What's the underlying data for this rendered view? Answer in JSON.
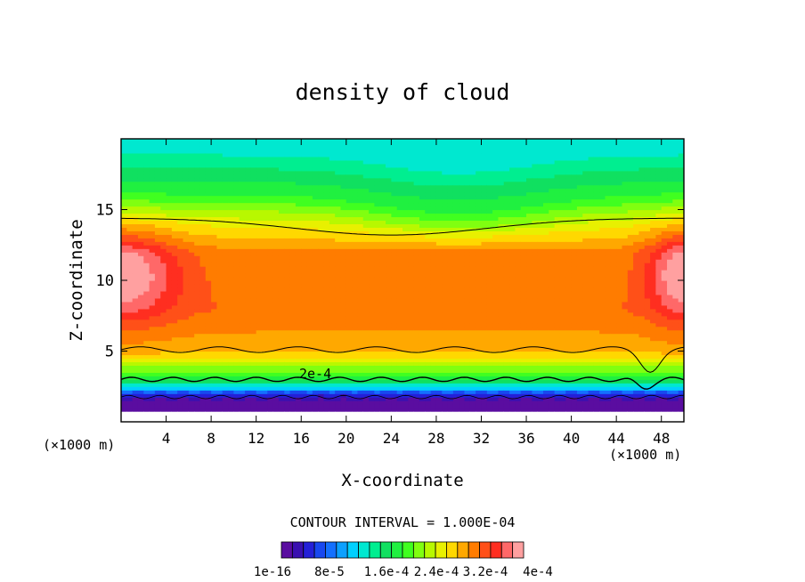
{
  "chart_data": {
    "type": "heatmap",
    "title": "density of cloud",
    "xlabel": "X-coordinate",
    "ylabel": "Z-coordinate",
    "x_unit": "(×1000 m)",
    "x_unit_right": "(×1000 m)",
    "xlim": [
      0,
      50
    ],
    "ylim": [
      0,
      20
    ],
    "x_ticks": [
      4,
      8,
      12,
      16,
      20,
      24,
      28,
      32,
      36,
      40,
      44,
      48
    ],
    "y_ticks": [
      5,
      10,
      15
    ],
    "contour_line_label": "2e-4",
    "contour_interval_text": "CONTOUR INTERVAL = 1.000E-04",
    "colorbar": {
      "min": 1e-16,
      "max": 0.0004,
      "n_levels": 21,
      "colors": [
        "#5a0da0",
        "#3a10b0",
        "#2420d8",
        "#1848f0",
        "#1470ff",
        "#0ca0ff",
        "#00d0ff",
        "#00e8d0",
        "#00ee90",
        "#10e060",
        "#20f040",
        "#40ff20",
        "#80ff10",
        "#b8f800",
        "#e8f000",
        "#ffd800",
        "#ffa800",
        "#ff7c00",
        "#ff5018",
        "#ff2e20",
        "#ff6868",
        "#ffa0a0"
      ],
      "tick_labels": [
        "1e-16",
        "8e-5",
        "1.6e-4",
        "2.4e-4",
        "3.2e-4",
        "4e-4"
      ]
    },
    "vertical_structure": [
      {
        "z": 0.9,
        "value": 1e-16
      },
      {
        "z": 1.6,
        "value": 2e-05
      },
      {
        "z": 2.4,
        "value": 0.00012
      },
      {
        "z": 3.0,
        "value": 0.0002
      },
      {
        "z": 4.2,
        "value": 0.00026
      },
      {
        "z": 5.0,
        "value": 0.00031
      },
      {
        "z": 8.0,
        "value": 0.00034
      },
      {
        "z": 12.0,
        "value": 0.00033
      },
      {
        "z": 14.0,
        "value": 0.00028
      },
      {
        "z": 16.0,
        "value": 0.00021
      },
      {
        "z": 19.0,
        "value": 0.00015
      }
    ]
  }
}
